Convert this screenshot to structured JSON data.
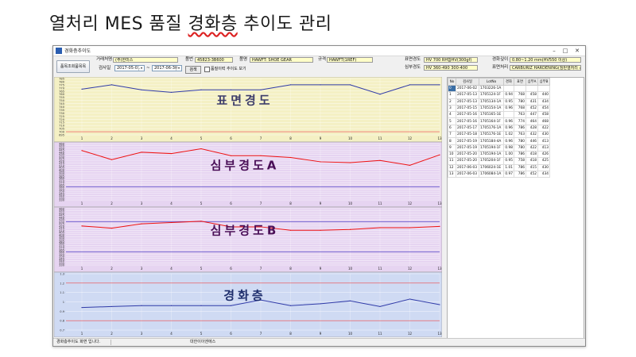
{
  "slide": {
    "title_a": "열처리 MES 품질 ",
    "title_b": "경화층",
    "title_c": " 추이도 관리"
  },
  "window": {
    "title": "경화층추이도",
    "min": "–",
    "max": "□",
    "close": "✕"
  },
  "toolbar": {
    "popup_btn": "품목조회품목목",
    "customer_label": "거래처명",
    "customer_value": "(주)한미스",
    "part_label": "품번",
    "part_value": "45823-3B600",
    "name_label": "품명",
    "name_value": "HAWFT: SHOE GEAR",
    "spec_label": "규격",
    "spec_value": "HAWFT(1REF)",
    "surface_spec_label": "표면경도",
    "surface_spec_value": "HV 700 RH합HV(300gf)",
    "core_spec_label": "심부경도",
    "core_spec_value": "HV 360-490 300-400",
    "depth_label": "경화깊이",
    "depth_value": "0.80~1.20 mm(HV550 이상)",
    "treatment_label": "표면처리",
    "treatment_value": "CARBURIZ HARDENING(침탄열처리 경화)",
    "date_label": "검사일",
    "date_from": "2017-05-01",
    "tilde": "~",
    "date_to": "2017-06-30",
    "query_btn": "검색",
    "checkbox_label": "품질이력 추이도 보기"
  },
  "charts": [
    {
      "title": "표면경도",
      "title_color": "#3d3d6b",
      "y_ticks": [
        "785",
        "780",
        "775",
        "770",
        "765",
        "760",
        "755",
        "750",
        "745",
        "740",
        "735",
        "730",
        "725",
        "720",
        "715",
        "710",
        "705",
        "700",
        "695"
      ]
    },
    {
      "title": "심부경도A",
      "title_color": "#4a0f57",
      "y_ticks": [
        "460",
        "455",
        "450",
        "445",
        "440",
        "435",
        "430",
        "425",
        "420",
        "415",
        "410",
        "405",
        "400",
        "395",
        "390",
        "385",
        "380",
        "375",
        "370",
        "365",
        "360",
        "355",
        "350",
        "345",
        "340",
        "335",
        "330"
      ]
    },
    {
      "title": "심부경도B",
      "title_color": "#4a0f57",
      "y_ticks": [
        "460",
        "455",
        "450",
        "445",
        "440",
        "435",
        "430",
        "425",
        "420",
        "415",
        "410",
        "405",
        "400",
        "395",
        "390",
        "385",
        "380",
        "375",
        "370",
        "365",
        "360",
        "355",
        "350",
        "345",
        "340",
        "335",
        "330"
      ]
    },
    {
      "title": "경화층",
      "title_color": "#1f2f6d",
      "y_ticks": [
        "1.3",
        "1.2",
        "1.1",
        "1",
        "0.9",
        "0.8",
        "0.7"
      ]
    }
  ],
  "chart_data": [
    {
      "type": "line",
      "title": "표면경도",
      "ylim": [
        695,
        785
      ],
      "x": [
        1,
        2,
        3,
        4,
        5,
        6,
        7,
        8,
        9,
        10,
        11,
        12,
        13
      ],
      "series": [
        {
          "values": [
            768,
            775,
            767,
            763,
            767,
            767,
            767,
            775,
            775,
            775,
            760,
            775,
            775
          ],
          "color": "#2f3aa8"
        }
      ],
      "reference_lines": [
        {
          "value": 700,
          "color": "#e44"
        }
      ],
      "background": "#f4f0c4"
    },
    {
      "type": "line",
      "title": "심부경도A",
      "ylim": [
        330,
        460
      ],
      "x": [
        1,
        2,
        3,
        4,
        5,
        6,
        7,
        8,
        9,
        10,
        11,
        12,
        13
      ],
      "series": [
        {
          "values": [
            444,
            423,
            440,
            437,
            448,
            432,
            432,
            428,
            418,
            416,
            421,
            410,
            434
          ],
          "color": "#e11"
        }
      ],
      "reference_lines": [
        {
          "value": 360,
          "color": "#5a4ac8"
        }
      ],
      "background": "#e6d4f1"
    },
    {
      "type": "line",
      "title": "심부경도B",
      "ylim": [
        330,
        460
      ],
      "x": [
        1,
        2,
        3,
        4,
        5,
        6,
        7,
        8,
        9,
        10,
        11,
        12,
        13
      ],
      "series": [
        {
          "values": [
            420,
            415,
            425,
            428,
            431,
            418,
            418,
            410,
            410,
            412,
            416,
            416,
            419
          ],
          "color": "#e11"
        }
      ],
      "reference_lines": [
        {
          "value": 430,
          "color": "#5a4ac8"
        },
        {
          "value": 360,
          "color": "#5a4ac8"
        }
      ],
      "background": "#e6d4f1"
    },
    {
      "type": "line",
      "title": "경화층",
      "ylim": [
        0.7,
        1.3
      ],
      "x": [
        1,
        2,
        3,
        4,
        5,
        6,
        7,
        8,
        9,
        10,
        11,
        12,
        13
      ],
      "series": [
        {
          "values": [
            0.94,
            0.95,
            0.96,
            0.96,
            0.96,
            0.96,
            1.02,
            0.96,
            0.98,
            1.01,
            0.95,
            1.03,
            0.97
          ],
          "color": "#2f3aa8"
        }
      ],
      "reference_lines": [
        {
          "value": 1.2,
          "color": "#e44"
        },
        {
          "value": 0.8,
          "color": "#e44"
        }
      ],
      "background": "#cfdaf3"
    }
  ],
  "table": {
    "headers": [
      "No",
      "검사일",
      "LotNo",
      "경화",
      "표면",
      "심부A",
      "심부B"
    ],
    "rows": [
      [
        "0",
        "2017-06-02",
        "1703226-1A",
        "",
        "",
        "",
        ""
      ],
      [
        "1",
        "2017-05-13",
        "1705124-1F",
        "0.94",
        "768",
        "458",
        "440"
      ],
      [
        "2",
        "2017-05-13",
        "1705134-1A",
        "0.95",
        "780",
        "431",
        "434"
      ],
      [
        "3",
        "2017-05-15",
        "1705154-1A",
        "0.96",
        "768",
        "452",
        "454"
      ],
      [
        "4",
        "2017-05-16",
        "1705165-1E",
        "",
        "763",
        "447",
        "458"
      ],
      [
        "5",
        "2017-05-16",
        "1705164-1F",
        "0.96",
        "774",
        "464",
        "468"
      ],
      [
        "6",
        "2017-05-17",
        "1705176-1A",
        "0.96",
        "786",
        "428",
        "422"
      ],
      [
        "7",
        "2017-05-18",
        "1705176-1E",
        "1.02",
        "763",
        "432",
        "430"
      ],
      [
        "8",
        "2017-05-19",
        "1705184-4A",
        "0.96",
        "780",
        "446",
        "413"
      ],
      [
        "9",
        "2017-05-19",
        "1705194-1F",
        "0.98",
        "780",
        "422",
        "413"
      ],
      [
        "10",
        "2017-05-20",
        "1705194-1A",
        "1.00",
        "786",
        "418",
        "426"
      ],
      [
        "11",
        "2017-05-20",
        "1705204-1F",
        "0.95",
        "758",
        "418",
        "425"
      ],
      [
        "12",
        "2017-06-03",
        "1706024-1E",
        "1.01",
        "786",
        "415",
        "430"
      ],
      [
        "13",
        "2017-06-03",
        "1706084-1A",
        "0.97",
        "786",
        "452",
        "434"
      ]
    ]
  },
  "status": {
    "left": "경화층추이도 화면 입니다.",
    "right": "대한이이엔에스"
  }
}
